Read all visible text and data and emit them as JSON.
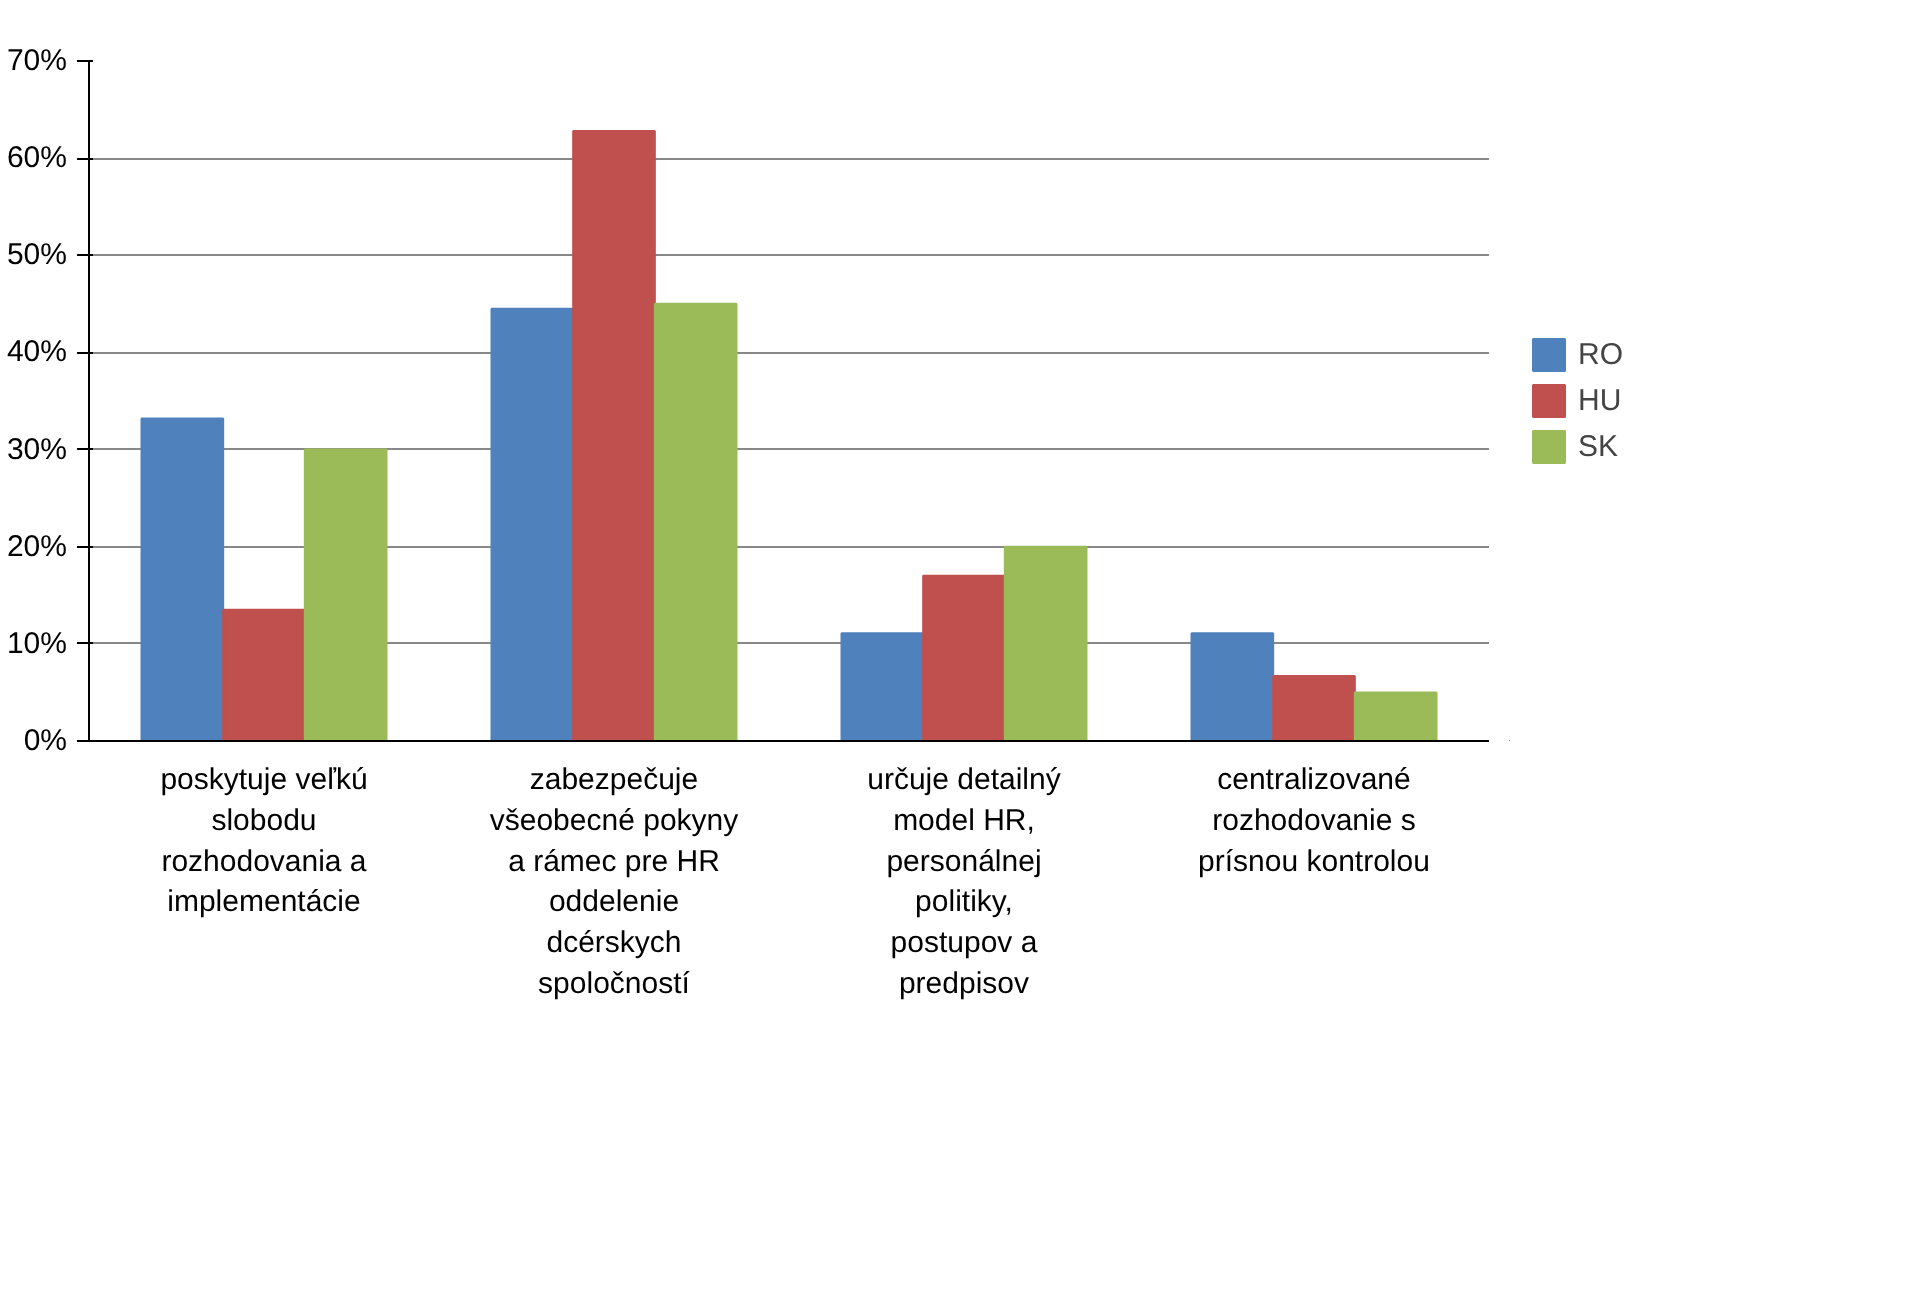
{
  "chart_data": {
    "type": "bar",
    "categories": [
      "poskytuje veľkú slobodu rozhodovania a implementácie",
      "zabezpečuje všeobecné pokyny a rámec pre HR oddelenie dcérskych spoločností",
      "určuje detailný model HR, personálnej politiky, postupov a predpisov",
      "centralizované rozhodovanie s prísnou kontrolou"
    ],
    "series": [
      {
        "name": "RO",
        "color": "#4f81bd",
        "values": [
          33.2,
          44.5,
          11.1,
          11.1
        ]
      },
      {
        "name": "HU",
        "color": "#c0504d",
        "values": [
          13.5,
          62.8,
          17,
          6.7
        ]
      },
      {
        "name": "SK",
        "color": "#9bbb59",
        "values": [
          30,
          45,
          20,
          5
        ]
      }
    ],
    "ylim": [
      0,
      70
    ],
    "yticks": [
      {
        "value": 0,
        "label": "0%"
      },
      {
        "value": 10,
        "label": "10%"
      },
      {
        "value": 20,
        "label": "20%"
      },
      {
        "value": 30,
        "label": "30%"
      },
      {
        "value": 40,
        "label": "40%"
      },
      {
        "value": 50,
        "label": "50%"
      },
      {
        "value": 60,
        "label": "60%"
      },
      {
        "value": 70,
        "label": "70%"
      }
    ],
    "grid": "y",
    "legend": "right"
  }
}
